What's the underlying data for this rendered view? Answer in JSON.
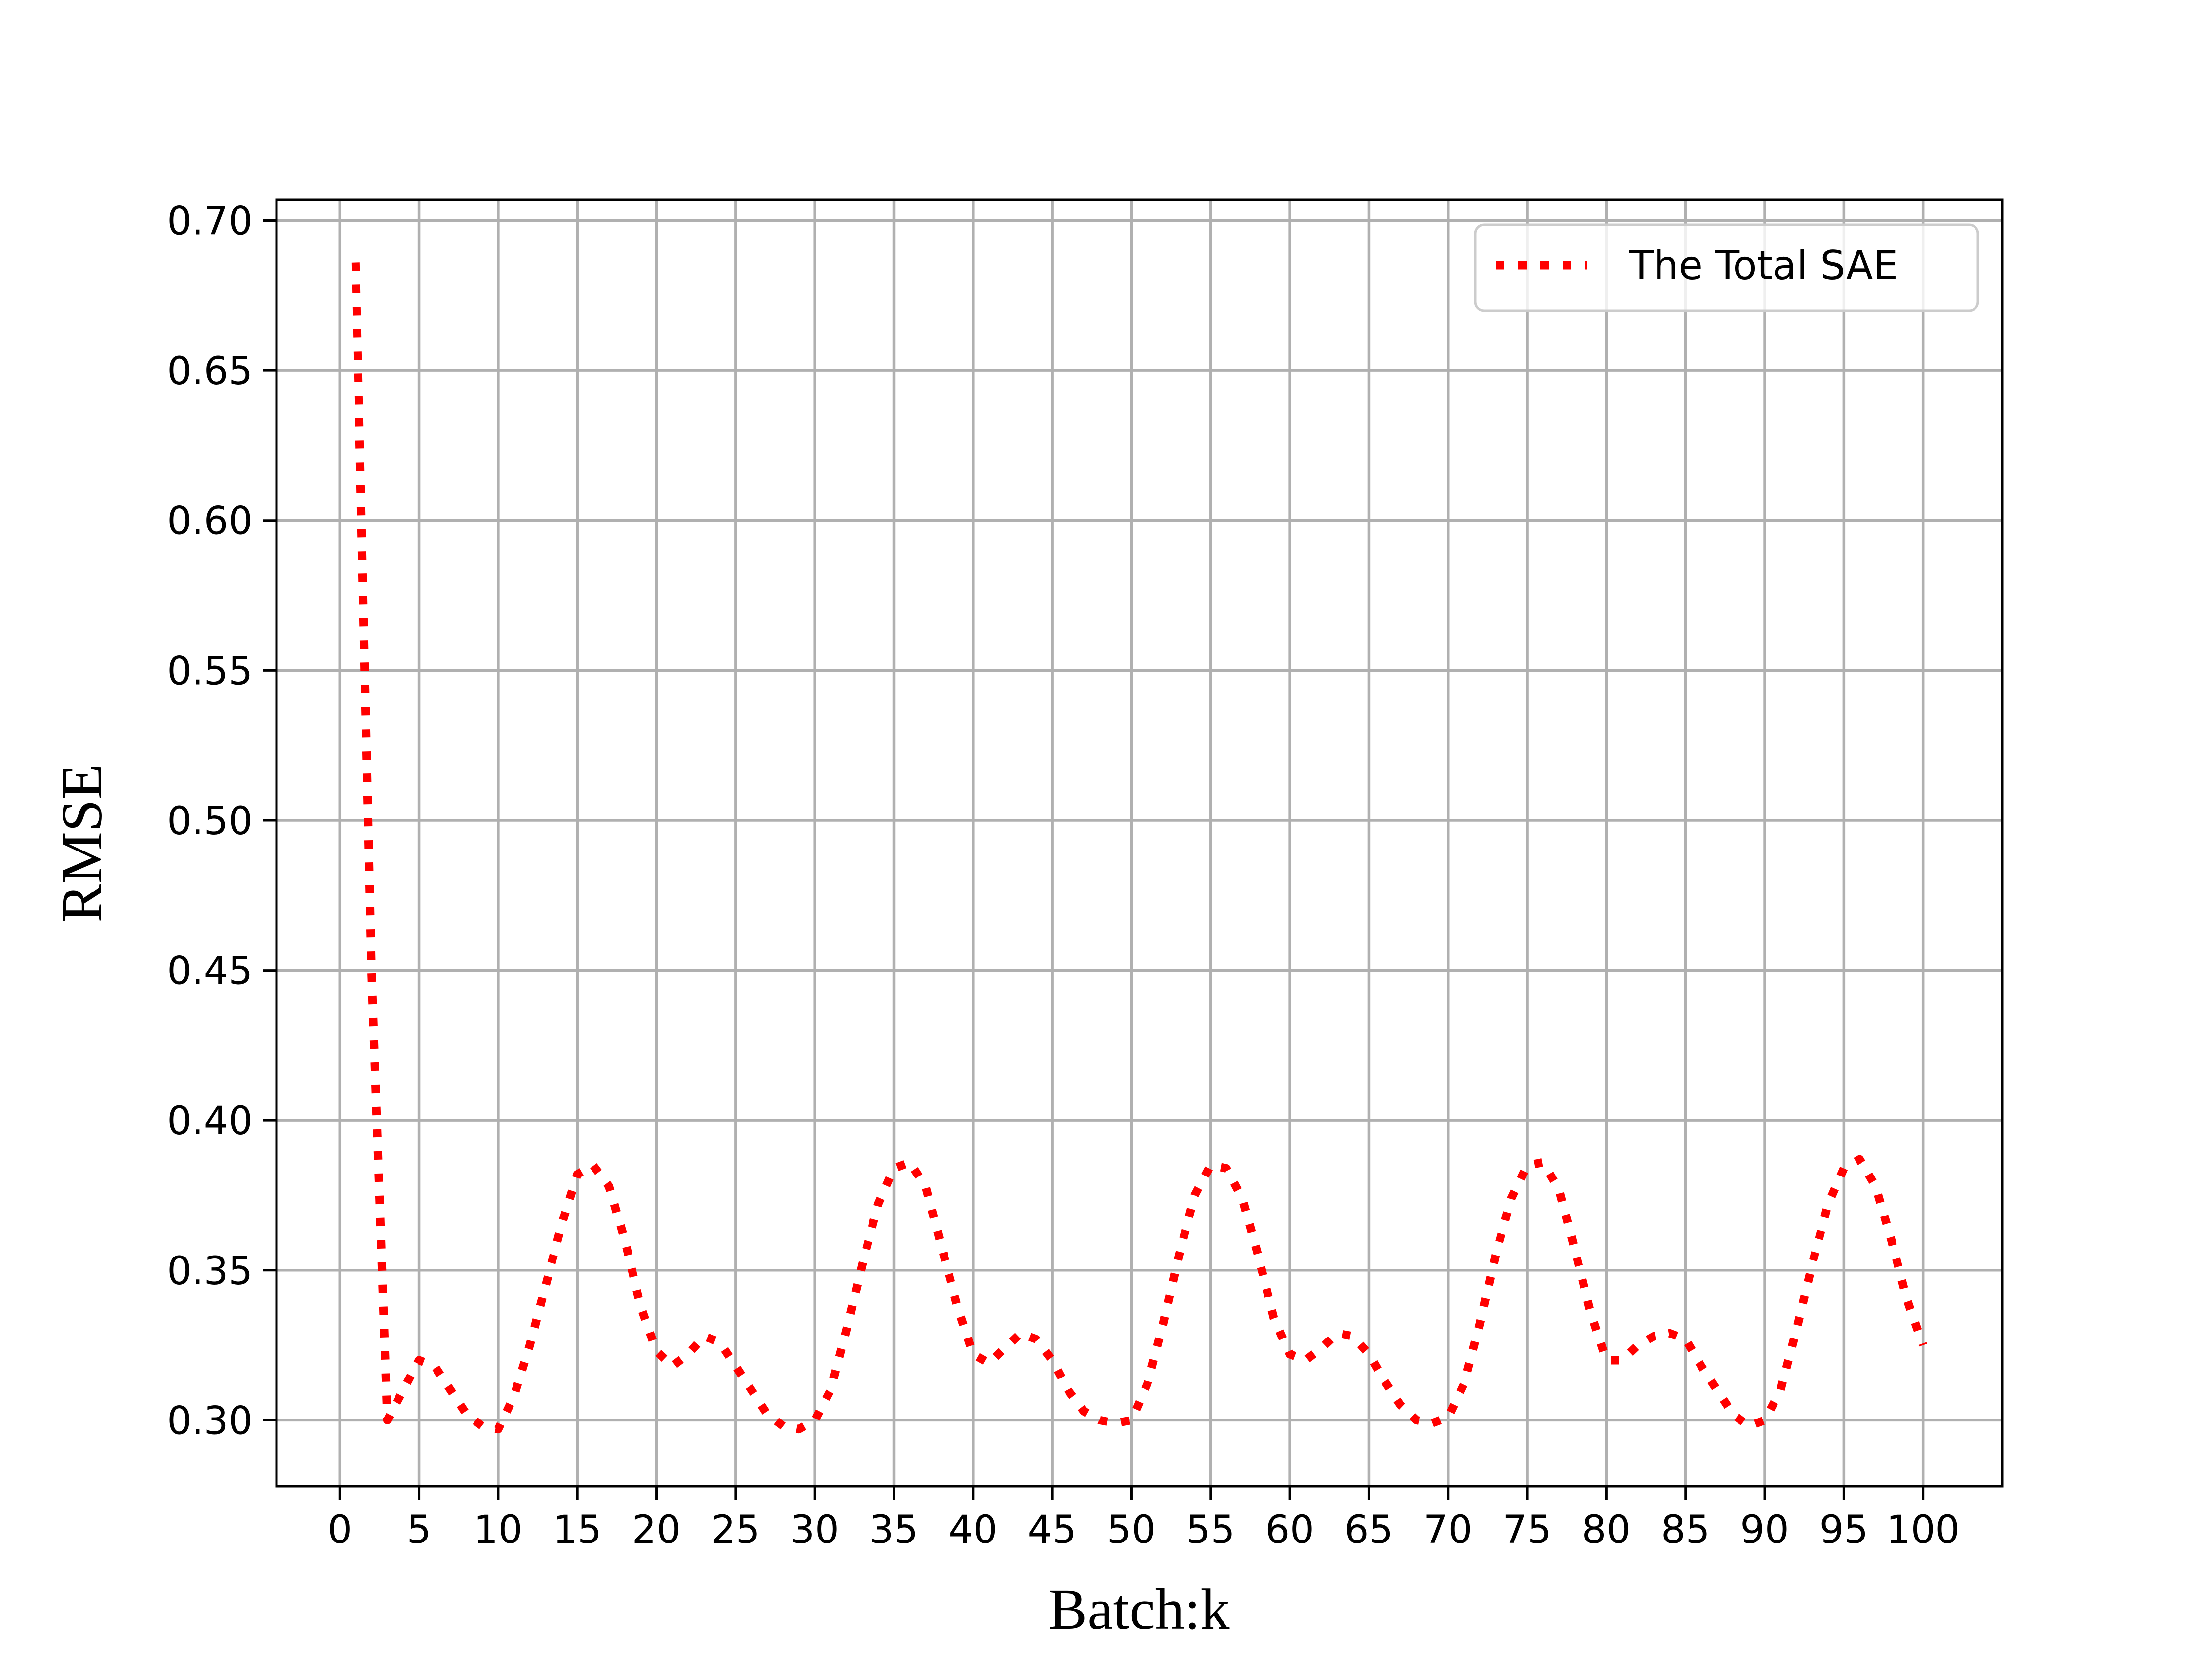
{
  "chart_data": {
    "type": "line",
    "title": "",
    "xlabel": "Batch:k",
    "ylabel": "RMSE",
    "xlim": [
      -4,
      105
    ],
    "ylim": [
      0.278,
      0.707
    ],
    "xticks": [
      0,
      5,
      10,
      15,
      20,
      25,
      30,
      35,
      40,
      45,
      50,
      55,
      60,
      65,
      70,
      75,
      80,
      85,
      90,
      95,
      100
    ],
    "xtick_labels": [
      "0",
      "5",
      "10",
      "15",
      "20",
      "25",
      "30",
      "35",
      "40",
      "45",
      "50",
      "55",
      "60",
      "65",
      "70",
      "75",
      "80",
      "85",
      "90",
      "95",
      "100"
    ],
    "yticks": [
      0.3,
      0.35,
      0.4,
      0.45,
      0.5,
      0.55,
      0.6,
      0.65,
      0.7
    ],
    "ytick_labels": [
      "0.30",
      "0.35",
      "0.40",
      "0.45",
      "0.50",
      "0.55",
      "0.60",
      "0.65",
      "0.70"
    ],
    "grid": true,
    "legend_position": "top-right",
    "colors": {
      "series": "#ff0000",
      "grid": "#b0b0b0",
      "frame": "#000000"
    },
    "series": [
      {
        "name": "The Total SAE",
        "line_style": "dotted",
        "x": [
          1,
          2,
          3,
          4,
          5,
          6,
          7,
          8,
          9,
          10,
          11,
          12,
          13,
          14,
          15,
          16,
          17,
          18,
          19,
          20,
          21,
          22,
          23,
          24,
          25,
          26,
          27,
          28,
          29,
          30,
          31,
          32,
          33,
          34,
          35,
          36,
          37,
          38,
          39,
          40,
          41,
          42,
          43,
          44,
          45,
          46,
          47,
          48,
          49,
          50,
          51,
          52,
          53,
          54,
          55,
          56,
          57,
          58,
          59,
          60,
          61,
          62,
          63,
          64,
          65,
          66,
          67,
          68,
          69,
          70,
          71,
          72,
          73,
          74,
          75,
          76,
          77,
          78,
          79,
          80,
          81,
          82,
          83,
          84,
          85,
          86,
          87,
          88,
          89,
          90,
          91,
          92,
          93,
          94,
          95,
          96,
          97,
          98,
          99,
          100
        ],
        "y": [
          0.686,
          0.45,
          0.3,
          0.31,
          0.32,
          0.318,
          0.31,
          0.302,
          0.298,
          0.297,
          0.308,
          0.325,
          0.345,
          0.365,
          0.382,
          0.385,
          0.378,
          0.36,
          0.338,
          0.323,
          0.318,
          0.322,
          0.328,
          0.326,
          0.318,
          0.31,
          0.302,
          0.298,
          0.297,
          0.3,
          0.31,
          0.33,
          0.352,
          0.372,
          0.384,
          0.386,
          0.378,
          0.358,
          0.338,
          0.322,
          0.319,
          0.324,
          0.329,
          0.327,
          0.32,
          0.31,
          0.303,
          0.3,
          0.299,
          0.3,
          0.312,
          0.332,
          0.355,
          0.375,
          0.385,
          0.384,
          0.374,
          0.355,
          0.334,
          0.322,
          0.32,
          0.324,
          0.329,
          0.328,
          0.322,
          0.313,
          0.305,
          0.3,
          0.299,
          0.301,
          0.312,
          0.332,
          0.355,
          0.374,
          0.385,
          0.386,
          0.377,
          0.357,
          0.336,
          0.32,
          0.32,
          0.325,
          0.328,
          0.329,
          0.327,
          0.318,
          0.31,
          0.302,
          0.298,
          0.3,
          0.31,
          0.33,
          0.352,
          0.372,
          0.384,
          0.387,
          0.378,
          0.36,
          0.34,
          0.325
        ]
      }
    ]
  }
}
